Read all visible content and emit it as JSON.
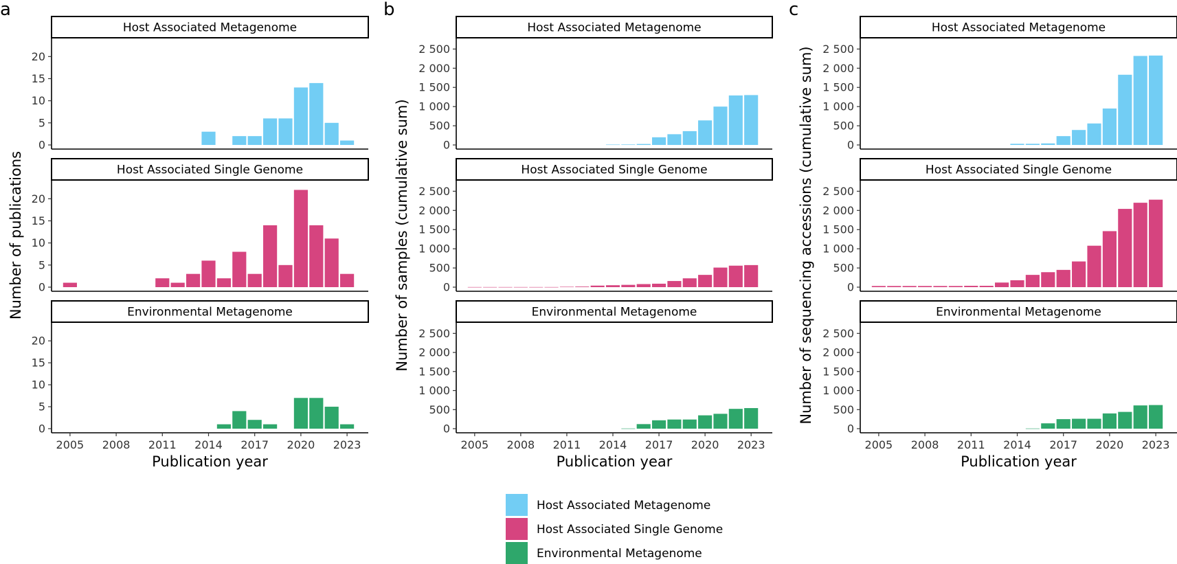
{
  "chart_data": [
    {
      "type": "bar",
      "panel_label": "a",
      "xlabel": "Publication year",
      "ylabel": "Number of publications",
      "ylim": [
        0,
        23
      ],
      "yticks": [
        0,
        5,
        10,
        15,
        20
      ],
      "ytick_labels": [
        "0",
        "5",
        "10",
        "15",
        "20"
      ],
      "xlim": [
        2003.8,
        2024.2
      ],
      "xticks": [
        2005,
        2008,
        2011,
        2014,
        2017,
        2020,
        2023
      ],
      "xtick_labels": [
        "2005",
        "2008",
        "2011",
        "2014",
        "2017",
        "2020",
        "2023"
      ],
      "facets": [
        {
          "name": "Host Associated Metagenome",
          "color": "#72CDF4",
          "x": [
            2014,
            2016,
            2017,
            2018,
            2019,
            2020,
            2021,
            2022,
            2023
          ],
          "values": [
            3,
            2,
            2,
            6,
            6,
            13,
            14,
            5,
            1
          ]
        },
        {
          "name": "Host Associated Single Genome",
          "color": "#D6447F",
          "x": [
            2005,
            2011,
            2012,
            2013,
            2014,
            2015,
            2016,
            2017,
            2018,
            2019,
            2020,
            2021,
            2022,
            2023
          ],
          "values": [
            1,
            2,
            1,
            3,
            6,
            2,
            8,
            3,
            14,
            5,
            22,
            14,
            11,
            3
          ]
        },
        {
          "name": "Environmental Metagenome",
          "color": "#2EA76B",
          "x": [
            2015,
            2016,
            2017,
            2018,
            2020,
            2021,
            2022,
            2023
          ],
          "values": [
            1,
            4,
            2,
            1,
            7,
            7,
            5,
            1
          ]
        }
      ]
    },
    {
      "type": "bar",
      "panel_label": "b",
      "xlabel": "Publication year",
      "ylabel": "Number of samples (cumulative sum)",
      "ylim": [
        0,
        2650
      ],
      "yticks": [
        0,
        500,
        1000,
        1500,
        2000,
        2500
      ],
      "ytick_labels": [
        "0",
        "500",
        "1 000",
        "1 500",
        "2 000",
        "2 500"
      ],
      "xlim": [
        2003.8,
        2024.2
      ],
      "xticks": [
        2005,
        2008,
        2011,
        2014,
        2017,
        2020,
        2023
      ],
      "xtick_labels": [
        "2005",
        "2008",
        "2011",
        "2014",
        "2017",
        "2020",
        "2023"
      ],
      "facets": [
        {
          "name": "Host Associated Metagenome",
          "color": "#72CDF4",
          "x": [
            2014,
            2015,
            2016,
            2017,
            2018,
            2019,
            2020,
            2021,
            2022,
            2023
          ],
          "values": [
            10,
            12,
            25,
            200,
            280,
            360,
            640,
            1000,
            1290,
            1300
          ]
        },
        {
          "name": "Host Associated Single Genome",
          "color": "#D6447F",
          "x": [
            2005,
            2006,
            2007,
            2008,
            2009,
            2010,
            2011,
            2012,
            2013,
            2014,
            2015,
            2016,
            2017,
            2018,
            2019,
            2020,
            2021,
            2022,
            2023
          ],
          "values": [
            3,
            3,
            3,
            3,
            3,
            3,
            10,
            15,
            40,
            50,
            60,
            80,
            90,
            160,
            230,
            320,
            510,
            560,
            575
          ]
        },
        {
          "name": "Environmental Metagenome",
          "color": "#2EA76B",
          "x": [
            2015,
            2016,
            2017,
            2018,
            2019,
            2020,
            2021,
            2022,
            2023
          ],
          "values": [
            5,
            120,
            220,
            240,
            240,
            350,
            390,
            520,
            540
          ]
        }
      ]
    },
    {
      "type": "bar",
      "panel_label": "c",
      "xlabel": "Publication year",
      "ylabel": "Number of sequencing accessions (cumulative sum)",
      "ylim": [
        0,
        2650
      ],
      "yticks": [
        0,
        500,
        1000,
        1500,
        2000,
        2500
      ],
      "ytick_labels": [
        "0",
        "500",
        "1 000",
        "1 500",
        "2 000",
        "2 500"
      ],
      "xlim": [
        2003.8,
        2024.2
      ],
      "xticks": [
        2005,
        2008,
        2011,
        2014,
        2017,
        2020,
        2023
      ],
      "xtick_labels": [
        "2005",
        "2008",
        "2011",
        "2014",
        "2017",
        "2020",
        "2023"
      ],
      "facets": [
        {
          "name": "Host Associated Metagenome",
          "color": "#72CDF4",
          "x": [
            2014,
            2015,
            2016,
            2017,
            2018,
            2019,
            2020,
            2021,
            2022,
            2023
          ],
          "values": [
            30,
            30,
            40,
            230,
            390,
            560,
            950,
            1830,
            2320,
            2330
          ]
        },
        {
          "name": "Host Associated Single Genome",
          "color": "#D6447F",
          "x": [
            2005,
            2006,
            2007,
            2008,
            2009,
            2010,
            2011,
            2012,
            2013,
            2014,
            2015,
            2016,
            2017,
            2018,
            2019,
            2020,
            2021,
            2022,
            2023
          ],
          "values": [
            30,
            30,
            30,
            30,
            30,
            30,
            35,
            35,
            120,
            180,
            320,
            390,
            450,
            670,
            1080,
            1460,
            2040,
            2200,
            2280
          ]
        },
        {
          "name": "Environmental Metagenome",
          "color": "#2EA76B",
          "x": [
            2015,
            2016,
            2017,
            2018,
            2019,
            2020,
            2021,
            2022,
            2023
          ],
          "values": [
            5,
            140,
            250,
            260,
            260,
            400,
            440,
            610,
            620
          ]
        }
      ]
    }
  ],
  "legend": {
    "items": [
      {
        "label": "Host Associated Metagenome",
        "color": "#72CDF4"
      },
      {
        "label": "Host Associated Single Genome",
        "color": "#D6447F"
      },
      {
        "label": "Environmental Metagenome",
        "color": "#2EA76B"
      }
    ]
  }
}
